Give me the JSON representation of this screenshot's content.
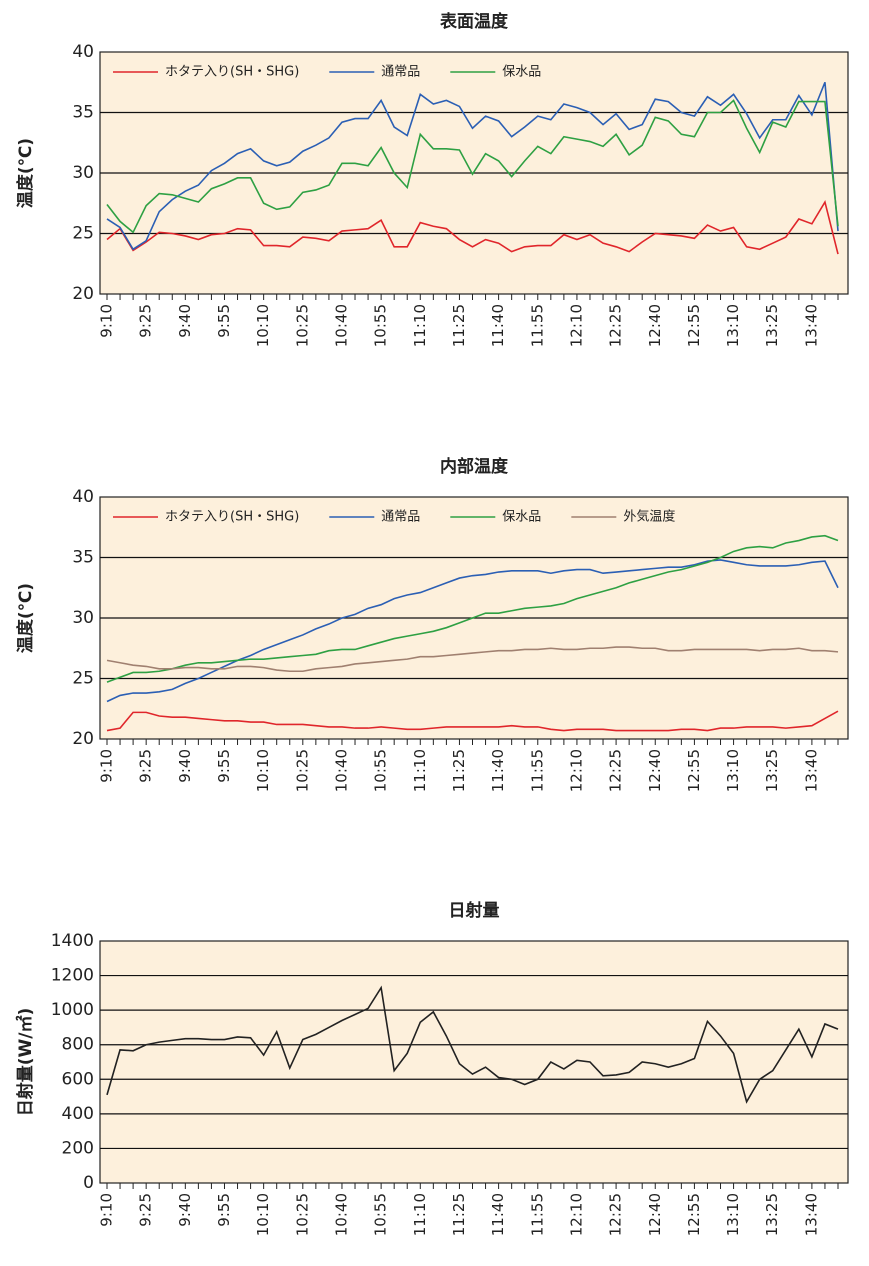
{
  "chart_data": [
    {
      "type": "line",
      "title": "表面温度",
      "y_label": "温度(℃)",
      "grid": true,
      "categories": [
        "9:10",
        null,
        null,
        "9:25",
        null,
        null,
        "9:40",
        null,
        null,
        "9:55",
        null,
        null,
        "10:10",
        null,
        null,
        "10:25",
        null,
        null,
        "10:40",
        null,
        null,
        "10:55",
        null,
        null,
        "11:10",
        null,
        null,
        "11:25",
        null,
        null,
        "11:40",
        null,
        null,
        "11:55",
        null,
        null,
        "12:10",
        null,
        null,
        "12:25",
        null,
        null,
        "12:40",
        null,
        null,
        "12:55",
        null,
        null,
        "13:10",
        null,
        null,
        "13:25",
        null,
        null,
        "13:40",
        null,
        null
      ],
      "ylim": [
        20,
        40
      ],
      "yticks": [
        20,
        25,
        30,
        35,
        40
      ],
      "series": [
        {
          "name": "ホタテ入り(SH・SHG)",
          "color": "#e0262b",
          "values": [
            24.5,
            25.4,
            23.6,
            24.3,
            25.1,
            25.0,
            24.8,
            24.5,
            24.9,
            25.0,
            25.4,
            25.3,
            24.0,
            24.0,
            23.9,
            24.7,
            24.6,
            24.4,
            25.2,
            25.3,
            25.4,
            26.1,
            23.9,
            23.9,
            25.9,
            25.6,
            25.4,
            24.5,
            23.9,
            24.5,
            24.2,
            23.5,
            23.9,
            24.0,
            24.0,
            24.9,
            24.5,
            24.9,
            24.2,
            23.9,
            23.5,
            24.3,
            25.0,
            24.9,
            24.8,
            24.6,
            25.7,
            25.2,
            25.5,
            23.9,
            23.7,
            24.2,
            24.7,
            26.2,
            25.8,
            27.6,
            23.3
          ]
        },
        {
          "name": "通常品",
          "color": "#2b5fb4",
          "values": [
            26.2,
            25.5,
            23.7,
            24.4,
            26.8,
            27.8,
            28.5,
            29.0,
            30.2,
            30.8,
            31.6,
            32.0,
            31.0,
            30.6,
            30.9,
            31.8,
            32.3,
            32.9,
            34.2,
            34.5,
            34.5,
            36.0,
            33.8,
            33.1,
            36.5,
            35.7,
            36.0,
            35.5,
            33.7,
            34.7,
            34.3,
            33.0,
            33.8,
            34.7,
            34.4,
            35.7,
            35.4,
            35.0,
            34.0,
            34.9,
            33.6,
            34.0,
            36.1,
            35.9,
            35.0,
            34.7,
            36.3,
            35.6,
            36.5,
            34.9,
            32.9,
            34.4,
            34.4,
            36.4,
            34.8,
            37.5,
            25.2
          ]
        },
        {
          "name": "保水品",
          "color": "#2ea043",
          "values": [
            27.4,
            26.0,
            25.1,
            27.3,
            28.3,
            28.2,
            27.9,
            27.6,
            28.7,
            29.1,
            29.6,
            29.6,
            27.5,
            27.0,
            27.2,
            28.4,
            28.6,
            29.0,
            30.8,
            30.8,
            30.6,
            32.1,
            30.0,
            28.8,
            33.2,
            32.0,
            32.0,
            31.9,
            29.9,
            31.6,
            31.0,
            29.7,
            31.0,
            32.2,
            31.6,
            33.0,
            32.8,
            32.6,
            32.2,
            33.2,
            31.5,
            32.3,
            34.6,
            34.3,
            33.2,
            33.0,
            35.0,
            35.0,
            36.0,
            33.7,
            31.7,
            34.2,
            33.8,
            35.9,
            35.9,
            35.9,
            25.6
          ]
        }
      ]
    },
    {
      "type": "line",
      "title": "内部温度",
      "y_label": "温度(℃)",
      "grid": true,
      "categories": [
        "9:10",
        null,
        null,
        "9:25",
        null,
        null,
        "9:40",
        null,
        null,
        "9:55",
        null,
        null,
        "10:10",
        null,
        null,
        "10:25",
        null,
        null,
        "10:40",
        null,
        null,
        "10:55",
        null,
        null,
        "11:10",
        null,
        null,
        "11:25",
        null,
        null,
        "11:40",
        null,
        null,
        "11:55",
        null,
        null,
        "12:10",
        null,
        null,
        "12:25",
        null,
        null,
        "12:40",
        null,
        null,
        "12:55",
        null,
        null,
        "13:10",
        null,
        null,
        "13:25",
        null,
        null,
        "13:40",
        null,
        null
      ],
      "ylim": [
        20,
        40
      ],
      "yticks": [
        20,
        25,
        30,
        35,
        40
      ],
      "series": [
        {
          "name": "ホタテ入り(SH・SHG)",
          "color": "#e0262b",
          "values": [
            20.7,
            20.9,
            22.2,
            22.2,
            21.9,
            21.8,
            21.8,
            21.7,
            21.6,
            21.5,
            21.5,
            21.4,
            21.4,
            21.2,
            21.2,
            21.2,
            21.1,
            21.0,
            21.0,
            20.9,
            20.9,
            21.0,
            20.9,
            20.8,
            20.8,
            20.9,
            21.0,
            21.0,
            21.0,
            21.0,
            21.0,
            21.1,
            21.0,
            21.0,
            20.8,
            20.7,
            20.8,
            20.8,
            20.8,
            20.7,
            20.7,
            20.7,
            20.7,
            20.7,
            20.8,
            20.8,
            20.7,
            20.9,
            20.9,
            21.0,
            21.0,
            21.0,
            20.9,
            21.0,
            21.1,
            21.7,
            22.3
          ]
        },
        {
          "name": "通常品",
          "color": "#2b5fb4",
          "values": [
            23.1,
            23.6,
            23.8,
            23.8,
            23.9,
            24.1,
            24.6,
            25.0,
            25.5,
            26.0,
            26.5,
            26.9,
            27.4,
            27.8,
            28.2,
            28.6,
            29.1,
            29.5,
            30.0,
            30.3,
            30.8,
            31.1,
            31.6,
            31.9,
            32.1,
            32.5,
            32.9,
            33.3,
            33.5,
            33.6,
            33.8,
            33.9,
            33.9,
            33.9,
            33.7,
            33.9,
            34.0,
            34.0,
            33.7,
            33.8,
            33.9,
            34.0,
            34.1,
            34.2,
            34.2,
            34.4,
            34.7,
            34.8,
            34.6,
            34.4,
            34.3,
            34.3,
            34.3,
            34.4,
            34.6,
            34.7,
            32.5
          ]
        },
        {
          "name": "保水品",
          "color": "#2ea043",
          "values": [
            24.7,
            25.1,
            25.5,
            25.5,
            25.6,
            25.8,
            26.1,
            26.3,
            26.3,
            26.4,
            26.5,
            26.6,
            26.6,
            26.7,
            26.8,
            26.9,
            27.0,
            27.3,
            27.4,
            27.4,
            27.7,
            28.0,
            28.3,
            28.5,
            28.7,
            28.9,
            29.2,
            29.6,
            30.0,
            30.4,
            30.4,
            30.6,
            30.8,
            30.9,
            31.0,
            31.2,
            31.6,
            31.9,
            32.2,
            32.5,
            32.9,
            33.2,
            33.5,
            33.8,
            34.0,
            34.3,
            34.6,
            35.0,
            35.5,
            35.8,
            35.9,
            35.8,
            36.2,
            36.4,
            36.7,
            36.8,
            36.4
          ]
        },
        {
          "name": "外気温度",
          "color": "#a08070",
          "values": [
            26.5,
            26.3,
            26.1,
            26.0,
            25.8,
            25.8,
            25.9,
            25.9,
            25.8,
            25.8,
            26.0,
            26.0,
            25.9,
            25.7,
            25.6,
            25.6,
            25.8,
            25.9,
            26.0,
            26.2,
            26.3,
            26.4,
            26.5,
            26.6,
            26.8,
            26.8,
            26.9,
            27.0,
            27.1,
            27.2,
            27.3,
            27.3,
            27.4,
            27.4,
            27.5,
            27.4,
            27.4,
            27.5,
            27.5,
            27.6,
            27.6,
            27.5,
            27.5,
            27.3,
            27.3,
            27.4,
            27.4,
            27.4,
            27.4,
            27.4,
            27.3,
            27.4,
            27.4,
            27.5,
            27.3,
            27.3,
            27.2
          ]
        }
      ]
    },
    {
      "type": "line",
      "title": "日射量",
      "y_label": "日射量(W/㎡)",
      "grid": true,
      "color": "#222222",
      "categories": [
        "9:10",
        null,
        null,
        "9:25",
        null,
        null,
        "9:40",
        null,
        null,
        "9:55",
        null,
        null,
        "10:10",
        null,
        null,
        "10:25",
        null,
        null,
        "10:40",
        null,
        null,
        "10:55",
        null,
        null,
        "11:10",
        null,
        null,
        "11:25",
        null,
        null,
        "11:40",
        null,
        null,
        "11:55",
        null,
        null,
        "12:10",
        null,
        null,
        "12:25",
        null,
        null,
        "12:40",
        null,
        null,
        "12:55",
        null,
        null,
        "13:10",
        null,
        null,
        "13:25",
        null,
        null,
        "13:40",
        null,
        null
      ],
      "ylim": [
        0,
        1400
      ],
      "yticks": [
        0,
        200,
        400,
        600,
        800,
        1000,
        1200,
        1400
      ],
      "values": [
        510,
        770,
        765,
        800,
        815,
        825,
        835,
        835,
        830,
        830,
        845,
        840,
        740,
        875,
        665,
        830,
        860,
        900,
        940,
        975,
        1010,
        1130,
        650,
        750,
        930,
        990,
        850,
        690,
        630,
        670,
        610,
        600,
        570,
        600,
        700,
        660,
        710,
        700,
        620,
        625,
        640,
        700,
        690,
        670,
        690,
        720,
        935,
        850,
        750,
        470,
        600,
        650,
        770,
        890,
        730,
        920,
        890
      ]
    }
  ]
}
